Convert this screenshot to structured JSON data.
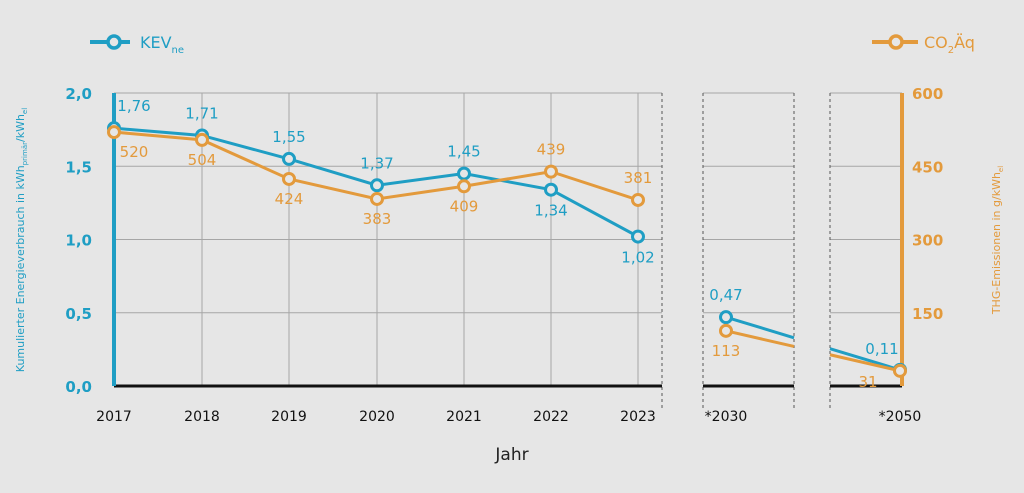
{
  "chart_data": {
    "type": "line",
    "xlabel": "Jahr",
    "categories": [
      "2017",
      "2018",
      "2019",
      "2020",
      "2021",
      "2022",
      "2023",
      "*2030",
      "*2050"
    ],
    "left_axis": {
      "label_main": "Kumulierter Energieverbrauch in kWh",
      "label_sub1": "primär",
      "label_mid": "/kWh",
      "label_sub2": "el",
      "ticks": [
        "0,0",
        "0,5",
        "1,0",
        "1,5",
        "2,0"
      ],
      "ylim": [
        0,
        2.0
      ]
    },
    "right_axis": {
      "label_main": "THG-Emissionen in g/kWh",
      "label_sub": "el",
      "ticks": [
        "150",
        "300",
        "450",
        "600"
      ],
      "ylim": [
        0,
        600
      ]
    },
    "legend": {
      "kev_main": "KEV",
      "kev_sub": "ne",
      "co2_main": "CO",
      "co2_sub": "2",
      "co2_tail": "Äq"
    },
    "series": [
      {
        "key": "kev",
        "axis": "left",
        "color": "#1f9ec4",
        "values": [
          1.76,
          1.71,
          1.55,
          1.37,
          1.45,
          1.34,
          1.02,
          0.47,
          0.11
        ],
        "labels": [
          "1,76",
          "1,71",
          "1,55",
          "1,37",
          "1,45",
          "1,34",
          "1,02",
          "0,47",
          "0,11"
        ]
      },
      {
        "key": "co2",
        "axis": "right",
        "color": "#e39a3c",
        "values": [
          520,
          504,
          424,
          383,
          409,
          439,
          381,
          113,
          31
        ],
        "labels": [
          "520",
          "504",
          "424",
          "383",
          "409",
          "439",
          "381",
          "113",
          "31"
        ]
      }
    ]
  }
}
